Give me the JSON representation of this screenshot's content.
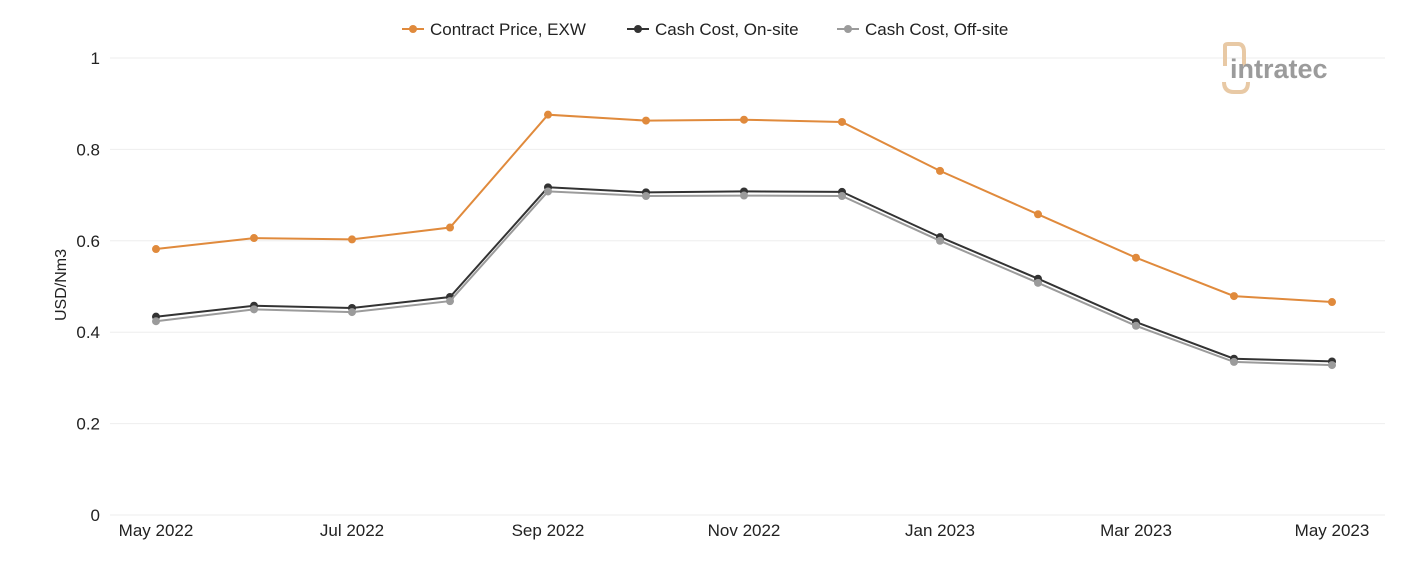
{
  "chart_data": {
    "type": "line",
    "title": "",
    "xlabel": "",
    "ylabel": "USD/Nm3",
    "ylim": [
      0,
      1
    ],
    "yticks": [
      "0",
      "0.2",
      "0.4",
      "0.6",
      "0.8",
      "1"
    ],
    "grid": true,
    "legend_position": "top-center",
    "x": [
      "May 2022",
      "Jun 2022",
      "Jul 2022",
      "Aug 2022",
      "Sep 2022",
      "Oct 2022",
      "Nov 2022",
      "Dec 2022",
      "Jan 2023",
      "Feb 2023",
      "Mar 2023",
      "Apr 2023",
      "May 2023"
    ],
    "xtick_labels": [
      "May 2022",
      "",
      "Jul 2022",
      "",
      "Sep 2022",
      "",
      "Nov 2022",
      "",
      "Jan 2023",
      "",
      "Mar 2023",
      "",
      "May 2023"
    ],
    "series": [
      {
        "name": "Contract Price, EXW",
        "color": "#e08a3c",
        "values": [
          0.582,
          0.606,
          0.603,
          0.629,
          0.876,
          0.863,
          0.865,
          0.86,
          0.753,
          0.658,
          0.563,
          0.479,
          0.466
        ]
      },
      {
        "name": "Cash Cost, On-site",
        "color": "#333333",
        "values": [
          0.434,
          0.458,
          0.453,
          0.477,
          0.717,
          0.706,
          0.708,
          0.707,
          0.608,
          0.517,
          0.422,
          0.342,
          0.336
        ]
      },
      {
        "name": "Cash Cost, Off-site",
        "color": "#9b9b9b",
        "values": [
          0.424,
          0.45,
          0.444,
          0.468,
          0.708,
          0.698,
          0.699,
          0.698,
          0.6,
          0.508,
          0.414,
          0.335,
          0.328
        ]
      }
    ]
  },
  "logo": {
    "text": "intratec",
    "mark_color": "#e8c9a5",
    "text_color": "#9b9b9b"
  }
}
